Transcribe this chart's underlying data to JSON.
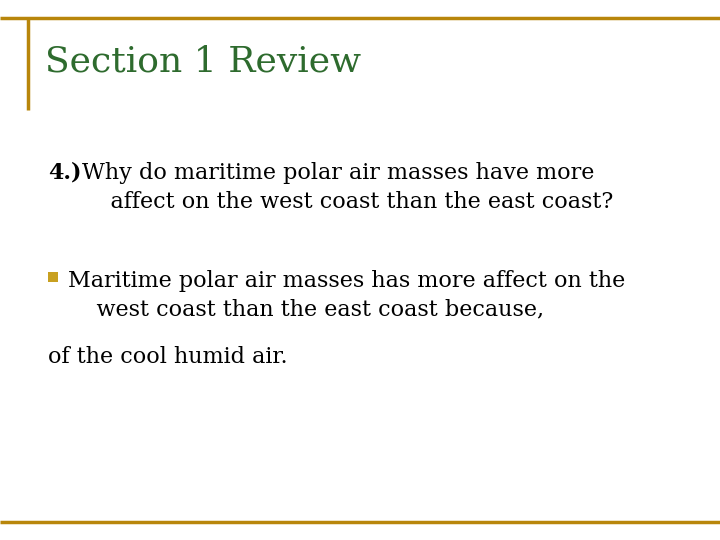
{
  "title": "Section 1 Review",
  "title_color": "#2E6B2E",
  "title_fontsize": 26,
  "background_color": "#FFFFFF",
  "border_color": "#B8860B",
  "question_number": "4.)",
  "question_rest": " Why do maritime polar air masses have more\n    affect on the west coast than the east coast?",
  "question_fontsize": 16,
  "bullet_color": "#C8A020",
  "bullet_line1": " Maritime polar air masses has more affect on the\n    west coast than the east coast because,",
  "bullet_line2": "of the cool humid air.",
  "body_fontsize": 16,
  "body_color": "#000000",
  "fig_width": 7.2,
  "fig_height": 5.4,
  "dpi": 100
}
